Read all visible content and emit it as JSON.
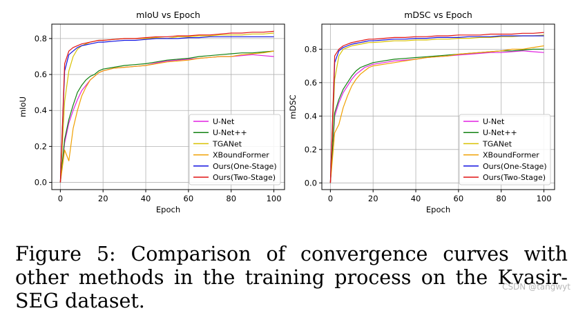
{
  "caption": "Figure 5: Comparison of convergence curves with other methods in the training process on the Kvasir-SEG dataset.",
  "watermark": "CSDN @tangwyt",
  "series_styles": [
    {
      "name": "U-Net",
      "color": "#e020e0"
    },
    {
      "name": "U-Net++",
      "color": "#108010"
    },
    {
      "name": "TGANet",
      "color": "#d8c000"
    },
    {
      "name": "XBoundFormer",
      "color": "#f0a000"
    },
    {
      "name": "Ours(One-Stage)",
      "color": "#1010e0"
    },
    {
      "name": "Ours(Two-Stage)",
      "color": "#e01010"
    }
  ],
  "chart_data": [
    {
      "type": "line",
      "title": "mIoU vs Epoch",
      "xlabel": "Epoch",
      "ylabel": "mIoU",
      "xlim": [
        -4,
        105
      ],
      "ylim": [
        -0.04,
        0.88
      ],
      "xticks": [
        0,
        20,
        40,
        60,
        80,
        100
      ],
      "yticks": [
        0.0,
        0.2,
        0.4,
        0.6,
        0.8
      ],
      "ytick_labels": [
        "0.0",
        "0.2",
        "0.4",
        "0.6",
        "0.8"
      ],
      "grid": true,
      "legend_position": "lower-right",
      "series": [
        {
          "name": "U-Net",
          "x": [
            0,
            2,
            4,
            6,
            8,
            10,
            12,
            14,
            16,
            18,
            20,
            25,
            30,
            35,
            40,
            45,
            50,
            55,
            60,
            65,
            70,
            75,
            80,
            85,
            90,
            95,
            100
          ],
          "values": [
            0.0,
            0.22,
            0.33,
            0.4,
            0.46,
            0.51,
            0.54,
            0.57,
            0.59,
            0.61,
            0.62,
            0.635,
            0.64,
            0.645,
            0.65,
            0.665,
            0.675,
            0.68,
            0.685,
            0.69,
            0.695,
            0.7,
            0.7,
            0.705,
            0.71,
            0.705,
            0.7
          ]
        },
        {
          "name": "U-Net++",
          "x": [
            0,
            2,
            4,
            6,
            8,
            10,
            12,
            14,
            16,
            18,
            20,
            25,
            30,
            35,
            40,
            45,
            50,
            55,
            60,
            65,
            70,
            75,
            80,
            85,
            90,
            95,
            100
          ],
          "values": [
            0.0,
            0.24,
            0.35,
            0.43,
            0.5,
            0.54,
            0.57,
            0.59,
            0.6,
            0.62,
            0.63,
            0.64,
            0.65,
            0.655,
            0.66,
            0.67,
            0.68,
            0.685,
            0.69,
            0.7,
            0.705,
            0.71,
            0.715,
            0.72,
            0.72,
            0.725,
            0.73
          ]
        },
        {
          "name": "TGANet",
          "x": [
            0,
            2,
            4,
            6,
            8,
            10,
            12,
            14,
            16,
            18,
            20,
            25,
            30,
            35,
            40,
            45,
            50,
            55,
            60,
            65,
            70,
            75,
            80,
            85,
            90,
            95,
            100
          ],
          "values": [
            0.0,
            0.45,
            0.62,
            0.7,
            0.74,
            0.76,
            0.77,
            0.78,
            0.785,
            0.79,
            0.79,
            0.795,
            0.8,
            0.8,
            0.8,
            0.805,
            0.8,
            0.81,
            0.81,
            0.815,
            0.815,
            0.82,
            0.82,
            0.82,
            0.825,
            0.825,
            0.83
          ]
        },
        {
          "name": "XBoundFormer",
          "x": [
            0,
            2,
            4,
            6,
            8,
            10,
            12,
            14,
            16,
            18,
            20,
            25,
            30,
            35,
            40,
            45,
            50,
            55,
            60,
            65,
            70,
            75,
            80,
            85,
            90,
            95,
            100
          ],
          "values": [
            0.0,
            0.18,
            0.12,
            0.3,
            0.4,
            0.48,
            0.53,
            0.57,
            0.59,
            0.61,
            0.62,
            0.635,
            0.64,
            0.645,
            0.65,
            0.66,
            0.67,
            0.675,
            0.68,
            0.69,
            0.695,
            0.7,
            0.7,
            0.71,
            0.715,
            0.72,
            0.73
          ]
        },
        {
          "name": "Ours(One-Stage)",
          "x": [
            0,
            2,
            4,
            6,
            8,
            10,
            12,
            14,
            16,
            18,
            20,
            25,
            30,
            35,
            40,
            45,
            50,
            55,
            60,
            65,
            70,
            75,
            80,
            85,
            90,
            95,
            100
          ],
          "values": [
            0.0,
            0.62,
            0.71,
            0.73,
            0.75,
            0.76,
            0.765,
            0.77,
            0.775,
            0.78,
            0.78,
            0.785,
            0.79,
            0.79,
            0.795,
            0.8,
            0.8,
            0.8,
            0.805,
            0.805,
            0.81,
            0.81,
            0.81,
            0.81,
            0.81,
            0.81,
            0.81
          ]
        },
        {
          "name": "Ours(Two-Stage)",
          "x": [
            0,
            2,
            4,
            6,
            8,
            10,
            12,
            14,
            16,
            18,
            20,
            25,
            30,
            35,
            40,
            45,
            50,
            55,
            60,
            65,
            70,
            75,
            80,
            85,
            90,
            95,
            100
          ],
          "values": [
            0.0,
            0.66,
            0.73,
            0.75,
            0.76,
            0.77,
            0.775,
            0.78,
            0.785,
            0.79,
            0.79,
            0.795,
            0.8,
            0.8,
            0.805,
            0.81,
            0.81,
            0.815,
            0.815,
            0.82,
            0.82,
            0.825,
            0.83,
            0.83,
            0.835,
            0.835,
            0.84
          ]
        }
      ]
    },
    {
      "type": "line",
      "title": "mDSC vs Epoch",
      "xlabel": "Epoch",
      "ylabel": "mDSC",
      "xlim": [
        -4,
        105
      ],
      "ylim": [
        -0.04,
        0.95
      ],
      "xticks": [
        0,
        20,
        40,
        60,
        80,
        100
      ],
      "yticks": [
        0.0,
        0.2,
        0.4,
        0.6,
        0.8
      ],
      "ytick_labels": [
        "0.0",
        "0.2",
        "0.4",
        "0.6",
        "0.8"
      ],
      "grid": true,
      "legend_position": "lower-right",
      "series": [
        {
          "name": "U-Net",
          "x": [
            0,
            2,
            4,
            6,
            8,
            10,
            12,
            14,
            16,
            18,
            20,
            25,
            30,
            35,
            40,
            45,
            50,
            55,
            60,
            65,
            70,
            75,
            80,
            85,
            90,
            95,
            100
          ],
          "values": [
            0.0,
            0.4,
            0.48,
            0.54,
            0.58,
            0.62,
            0.65,
            0.67,
            0.69,
            0.7,
            0.71,
            0.72,
            0.73,
            0.735,
            0.74,
            0.75,
            0.755,
            0.76,
            0.765,
            0.77,
            0.775,
            0.78,
            0.78,
            0.785,
            0.79,
            0.785,
            0.78
          ]
        },
        {
          "name": "U-Net++",
          "x": [
            0,
            2,
            4,
            6,
            8,
            10,
            12,
            14,
            16,
            18,
            20,
            25,
            30,
            35,
            40,
            45,
            50,
            55,
            60,
            65,
            70,
            75,
            80,
            85,
            90,
            95,
            100
          ],
          "values": [
            0.0,
            0.42,
            0.5,
            0.56,
            0.6,
            0.64,
            0.67,
            0.69,
            0.7,
            0.71,
            0.72,
            0.73,
            0.74,
            0.745,
            0.75,
            0.755,
            0.76,
            0.765,
            0.77,
            0.775,
            0.78,
            0.785,
            0.79,
            0.79,
            0.795,
            0.8,
            0.8
          ]
        },
        {
          "name": "TGANet",
          "x": [
            0,
            2,
            4,
            6,
            8,
            10,
            12,
            14,
            16,
            18,
            20,
            25,
            30,
            35,
            40,
            45,
            50,
            55,
            60,
            65,
            70,
            75,
            80,
            85,
            90,
            95,
            100
          ],
          "values": [
            0.0,
            0.62,
            0.76,
            0.8,
            0.81,
            0.82,
            0.825,
            0.83,
            0.835,
            0.84,
            0.84,
            0.845,
            0.85,
            0.85,
            0.855,
            0.855,
            0.86,
            0.86,
            0.865,
            0.865,
            0.87,
            0.87,
            0.875,
            0.875,
            0.88,
            0.88,
            0.885
          ]
        },
        {
          "name": "XBoundFormer",
          "x": [
            0,
            2,
            4,
            6,
            8,
            10,
            12,
            14,
            16,
            18,
            20,
            25,
            30,
            35,
            40,
            45,
            50,
            55,
            60,
            65,
            70,
            75,
            80,
            85,
            90,
            95,
            100
          ],
          "values": [
            0.0,
            0.3,
            0.35,
            0.45,
            0.52,
            0.58,
            0.62,
            0.65,
            0.67,
            0.69,
            0.7,
            0.71,
            0.72,
            0.73,
            0.74,
            0.75,
            0.755,
            0.76,
            0.77,
            0.775,
            0.78,
            0.785,
            0.79,
            0.8,
            0.8,
            0.81,
            0.82
          ]
        },
        {
          "name": "Ours(One-Stage)",
          "x": [
            0,
            2,
            4,
            6,
            8,
            10,
            12,
            14,
            16,
            18,
            20,
            25,
            30,
            35,
            40,
            45,
            50,
            55,
            60,
            65,
            70,
            75,
            80,
            85,
            90,
            95,
            100
          ],
          "values": [
            0.0,
            0.72,
            0.79,
            0.81,
            0.82,
            0.83,
            0.835,
            0.84,
            0.845,
            0.85,
            0.85,
            0.855,
            0.86,
            0.86,
            0.865,
            0.865,
            0.87,
            0.87,
            0.87,
            0.875,
            0.875,
            0.875,
            0.88,
            0.88,
            0.88,
            0.88,
            0.88
          ]
        },
        {
          "name": "Ours(Two-Stage)",
          "x": [
            0,
            2,
            4,
            6,
            8,
            10,
            12,
            14,
            16,
            18,
            20,
            25,
            30,
            35,
            40,
            45,
            50,
            55,
            60,
            65,
            70,
            75,
            80,
            85,
            90,
            95,
            100
          ],
          "values": [
            0.0,
            0.76,
            0.8,
            0.82,
            0.83,
            0.84,
            0.845,
            0.85,
            0.855,
            0.86,
            0.86,
            0.865,
            0.87,
            0.87,
            0.875,
            0.875,
            0.88,
            0.88,
            0.885,
            0.885,
            0.885,
            0.89,
            0.89,
            0.89,
            0.895,
            0.895,
            0.9
          ]
        }
      ]
    }
  ]
}
